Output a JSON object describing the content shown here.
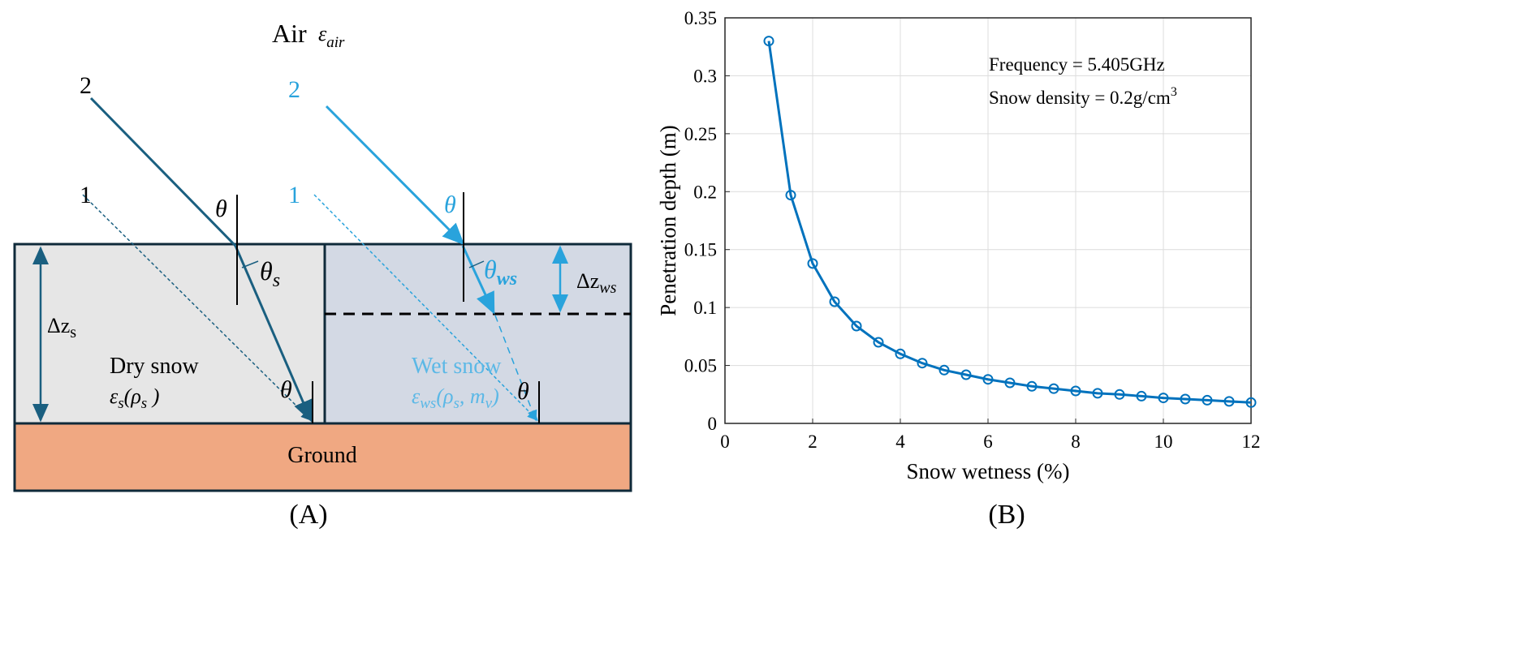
{
  "panel_a": {
    "label": "(A)",
    "air": "Air",
    "eps_air": "ε",
    "eps_air_sub": "air",
    "ray2_dry": "2",
    "ray1_dry": "1",
    "ray2_wet": "2",
    "ray1_wet": "1",
    "theta": "θ",
    "theta_s": "θ",
    "theta_s_sub": "s",
    "theta_ws": "θ",
    "theta_ws_sub": "ws",
    "dz_s": "Δz",
    "dz_s_sub": "s",
    "dz_ws": "Δz",
    "dz_ws_sub": "ws",
    "dry_snow": "Dry snow",
    "dry_eps": "ε",
    "dry_eps_sub": "s",
    "dry_eps_args": "(ρ",
    "dry_eps_args_sub": "s",
    "dry_eps_close": " )",
    "wet_snow": "Wet snow",
    "wet_eps": "ε",
    "wet_eps_sub": "ws",
    "wet_eps_args": "(ρ",
    "wet_eps_args_sub": "s",
    "wet_eps_mid": ", m",
    "wet_eps_mid_sub": "v",
    "wet_eps_close": ")",
    "ground": "Ground",
    "colors": {
      "dry": "#1a5f80",
      "wet": "#29a3dc",
      "snow_dry": "#e6e6e6",
      "snow_wet": "#d3d9e4",
      "ground": "#f0a882"
    }
  },
  "panel_b": {
    "label": "(B)"
  },
  "chart_data": {
    "type": "line",
    "xlabel": "Snow wetness (%)",
    "ylabel": "Penetration depth (m)",
    "xlim": [
      0,
      12
    ],
    "ylim": [
      0,
      0.35
    ],
    "xticks": [
      "0",
      "2",
      "4",
      "6",
      "8",
      "10",
      "12"
    ],
    "yticks": [
      "0",
      "0.05",
      "0.1",
      "0.15",
      "0.2",
      "0.25",
      "0.3",
      "0.35"
    ],
    "grid": true,
    "marker": "circle",
    "color": "#0072bd",
    "annotations": [
      "Frequency = 5.405GHz",
      "Snow density = 0.2g/cm"
    ],
    "annotation_superscript": "3",
    "x": [
      1,
      1.5,
      2,
      2.5,
      3,
      3.5,
      4,
      4.5,
      5,
      5.5,
      6,
      6.5,
      7,
      7.5,
      8,
      8.5,
      9,
      9.5,
      10,
      10.5,
      11,
      11.5,
      12
    ],
    "y": [
      0.33,
      0.197,
      0.138,
      0.105,
      0.084,
      0.07,
      0.06,
      0.052,
      0.046,
      0.042,
      0.038,
      0.035,
      0.032,
      0.03,
      0.028,
      0.026,
      0.025,
      0.0235,
      0.022,
      0.021,
      0.02,
      0.019,
      0.018
    ]
  }
}
